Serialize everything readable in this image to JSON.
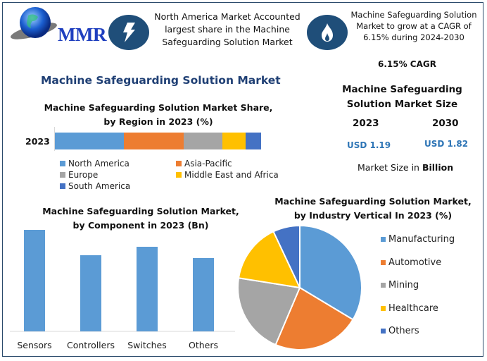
{
  "brand": {
    "logo_text": "MMR"
  },
  "header": {
    "insight_left": "North America Market Accounted largest share in the Machine Safeguarding Solution Market",
    "insight_right": "Machine Safeguarding Solution Market to grow at a CAGR of 6.15% during 2024-2030",
    "cagr_label": "6.15% CAGR",
    "icons": [
      "lightning-icon",
      "flame-icon"
    ]
  },
  "main_title": "Machine Safeguarding Solution Market",
  "market_size": {
    "title_line1": "Machine Safeguarding",
    "title_line2": "Solution Market Size",
    "year_a": "2023",
    "year_b": "2030",
    "value_a": "USD 1.19",
    "value_b": "USD 1.82",
    "note_prefix": "Market Size in ",
    "note_bold": "Billion"
  },
  "colors": {
    "blue": "#5b9bd5",
    "orange": "#ed7d31",
    "gray": "#a5a5a5",
    "yellow": "#ffc000",
    "darkblue": "#4472c4",
    "title_navy": "#1f3f74",
    "usd_blue": "#2e75b6",
    "icon_navy": "#1f4e79"
  },
  "chart_data": [
    {
      "type": "bar",
      "orientation": "horizontal-stacked",
      "title_line1": "Machine Safeguarding Solution Market Share,",
      "title_line2": "by Region in 2023 (%)",
      "categories": [
        "2023"
      ],
      "series": [
        {
          "name": "North America",
          "values": [
            33.4
          ],
          "color": "#5b9bd5"
        },
        {
          "name": "Asia-Pacific",
          "values": [
            29.0
          ],
          "color": "#ed7d31"
        },
        {
          "name": "Europe",
          "values": [
            18.8
          ],
          "color": "#a5a5a5"
        },
        {
          "name": "Middle East and Africa",
          "values": [
            11.3
          ],
          "color": "#ffc000"
        },
        {
          "name": "South America",
          "values": [
            7.5
          ],
          "color": "#4472c4"
        }
      ],
      "xlim": [
        0,
        100
      ],
      "legend": "bottom"
    },
    {
      "type": "bar",
      "title_line1": "Machine Safeguarding Solution Market,",
      "title_line2": "by Component in 2023 (Bn)",
      "categories": [
        "Sensors",
        "Controllers",
        "Switches",
        "Others"
      ],
      "values": [
        0.36,
        0.27,
        0.3,
        0.26
      ],
      "color": "#5b9bd5",
      "ylim": [
        0,
        0.4
      ],
      "grid": false,
      "legend": "none"
    },
    {
      "type": "pie",
      "title_line1": "Machine Safeguarding Solution Market,",
      "title_line2": "by Industry Vertical In 2023 (%)",
      "categories": [
        "Manufacturing",
        "Automotive",
        "Mining",
        "Healthcare",
        "Others"
      ],
      "values": [
        33.6,
        22.8,
        21.1,
        15.5,
        7.0
      ],
      "colors": [
        "#5b9bd5",
        "#ed7d31",
        "#a5a5a5",
        "#ffc000",
        "#4472c4"
      ],
      "legend": "right"
    }
  ]
}
